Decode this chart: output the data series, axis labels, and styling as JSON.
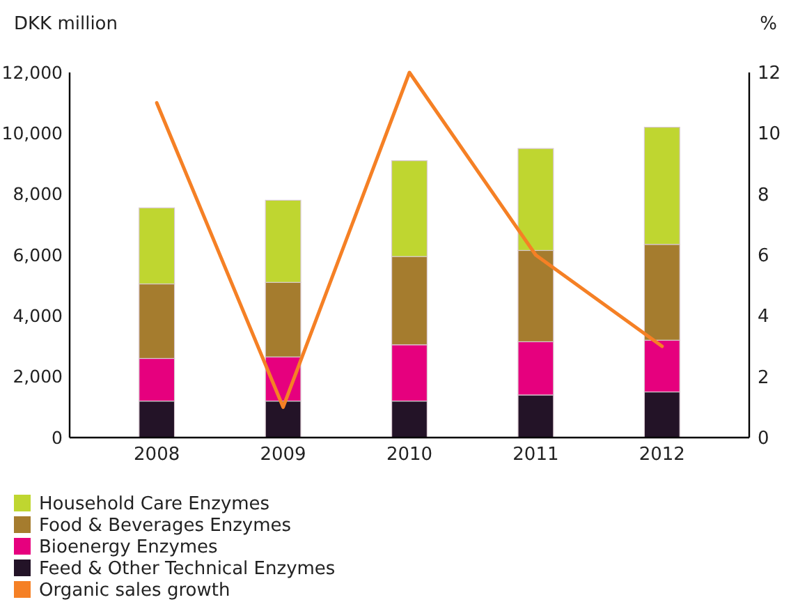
{
  "chart_data": {
    "type": "bar",
    "stacked": true,
    "ylabel": "DKK million",
    "y2label": "%",
    "categories": [
      "2008",
      "2009",
      "2010",
      "2011",
      "2012"
    ],
    "series": [
      {
        "name": "Feed & Other Technical Enzymes",
        "color": "#231327",
        "values": [
          1200,
          1200,
          1200,
          1400,
          1500
        ]
      },
      {
        "name": "Bioenergy Enzymes",
        "color": "#e6007e",
        "values": [
          1400,
          1450,
          1850,
          1750,
          1700
        ]
      },
      {
        "name": "Food & Beverages Enzymes",
        "color": "#a57c2e",
        "values": [
          2450,
          2450,
          2900,
          3000,
          3150
        ]
      },
      {
        "name": "Household Care Enzymes",
        "color": "#bfd630",
        "values": [
          2500,
          2700,
          3150,
          3350,
          3850
        ]
      },
      {
        "name": "Organic sales growth",
        "type": "line",
        "axis": "y2",
        "color": "#f58025",
        "values": [
          11,
          1,
          12,
          6,
          3
        ]
      }
    ],
    "ylim": [
      0,
      12000
    ],
    "yticks": [
      0,
      {
        "value": 2000,
        "label": "2,000"
      },
      {
        "value": 4000,
        "label": "4,000"
      },
      {
        "value": 6000,
        "label": "6,000"
      },
      {
        "value": 8000,
        "label": "8,000"
      },
      {
        "value": 10000,
        "label": "10,000"
      },
      {
        "value": 12000,
        "label": "12,000"
      }
    ],
    "y2lim": [
      0,
      12
    ],
    "y2ticks": [
      0,
      2,
      4,
      6,
      8,
      10,
      12
    ],
    "legend": "bottom",
    "grid": false
  }
}
